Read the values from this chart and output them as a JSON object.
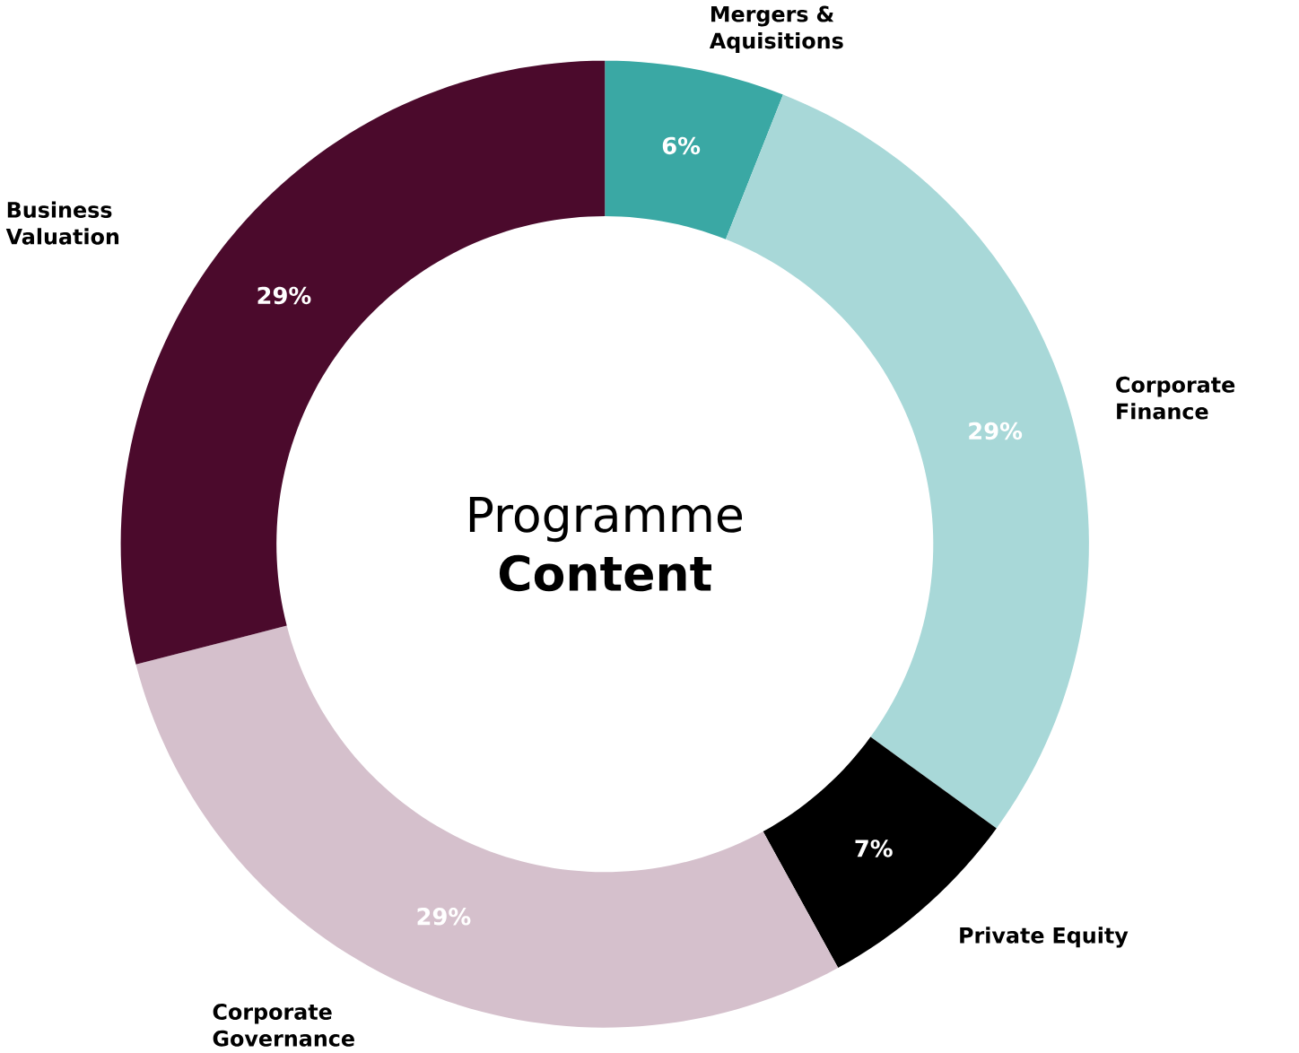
{
  "chart_data": {
    "type": "donut",
    "title": "Programme **Content**",
    "categories": [
      "Mergers & Aquisitions",
      "Corporate Finance",
      "Private Equity",
      "Corporate Governance",
      "Business Valuation"
    ],
    "values": [
      6,
      29,
      7,
      29,
      29
    ],
    "colors": [
      "#3aa8a4",
      "#a8d8d8",
      "#000000",
      "#d5c0cc",
      "#4b0a2c"
    ],
    "value_labels": [
      "6%",
      "29%",
      "7%",
      "29%",
      "29%"
    ]
  }
}
